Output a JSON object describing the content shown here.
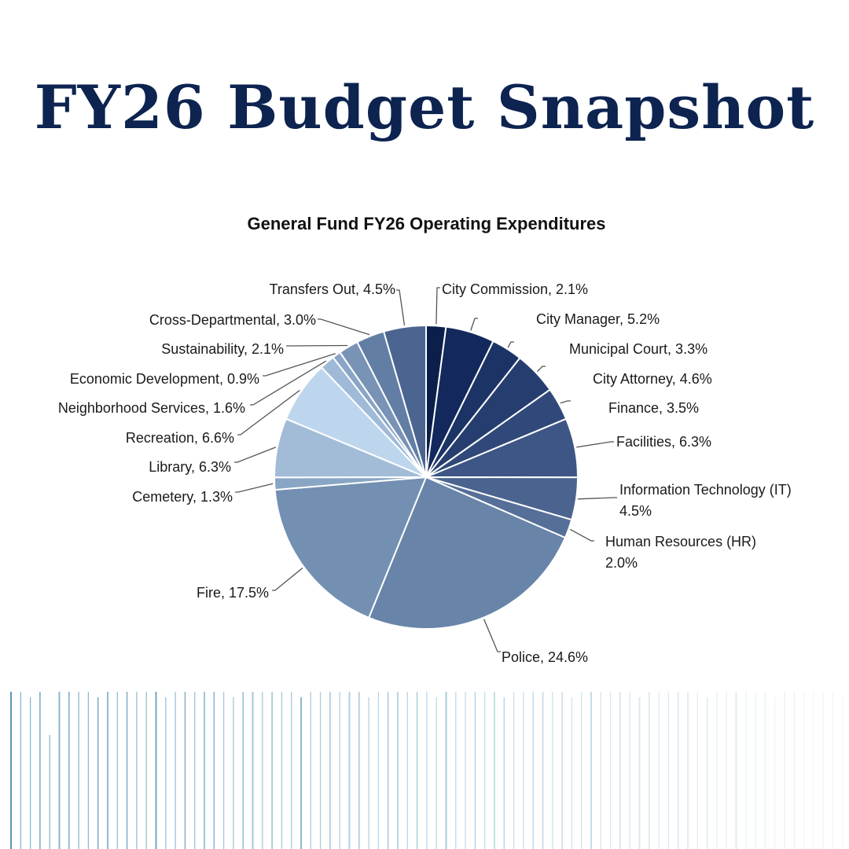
{
  "page": {
    "title": "FY26 Budget Snapshot"
  },
  "chart_data": {
    "type": "pie",
    "title": "General Fund FY26 Operating Expenditures",
    "legend": "none",
    "slices": [
      {
        "label": "City Commission",
        "value": 2.1,
        "text": "City Commission, 2.1%",
        "color": "#0b1f4a"
      },
      {
        "label": "City Manager",
        "value": 5.2,
        "text": "City Manager, 5.2%",
        "color": "#13285c"
      },
      {
        "label": "Municipal Court",
        "value": 3.3,
        "text": "Municipal Court, 3.3%",
        "color": "#1c3366"
      },
      {
        "label": "City Attorney",
        "value": 4.6,
        "text": "City Attorney, 4.6%",
        "color": "#263e6f"
      },
      {
        "label": "Finance",
        "value": 3.5,
        "text": "Finance, 3.5%",
        "color": "#30497a"
      },
      {
        "label": "Facilities",
        "value": 6.3,
        "text": "Facilities, 6.3%",
        "color": "#3d5685"
      },
      {
        "label": "Information Technology (IT)",
        "value": 4.5,
        "text": "Information Technology (IT)|4.5%",
        "color": "#4a648f"
      },
      {
        "label": "Human Resources (HR)",
        "value": 2.0,
        "text": "Human Resources (HR)|2.0%",
        "color": "#566f99"
      },
      {
        "label": "Police",
        "value": 24.6,
        "text": "Police, 24.6%",
        "color": "#6884a8"
      },
      {
        "label": "Fire",
        "value": 17.5,
        "text": "Fire, 17.5%",
        "color": "#7390b2"
      },
      {
        "label": "Cemetery",
        "value": 1.3,
        "text": "Cemetery, 1.3%",
        "color": "#88a5c4"
      },
      {
        "label": "Library",
        "value": 6.3,
        "text": "Library, 6.3%",
        "color": "#a2bcd7"
      },
      {
        "label": "Recreation",
        "value": 6.6,
        "text": "Recreation, 6.6%",
        "color": "#bdd6ed"
      },
      {
        "label": "Neighborhood Services",
        "value": 1.6,
        "text": "Neighborhood Services, 1.6%",
        "color": "#9fbad8"
      },
      {
        "label": "Economic Development",
        "value": 0.9,
        "text": "Economic Development, 0.9%",
        "color": "#8aa5c5"
      },
      {
        "label": "Sustainability",
        "value": 2.1,
        "text": "Sustainability, 2.1%",
        "color": "#7893b6"
      },
      {
        "label": "Cross-Departmental",
        "value": 3.0,
        "text": "Cross-Departmental, 3.0%",
        "color": "#627ea4"
      },
      {
        "label": "Transfers Out",
        "value": 4.5,
        "text": "Transfers Out, 4.5%",
        "color": "#4b6590"
      }
    ]
  }
}
